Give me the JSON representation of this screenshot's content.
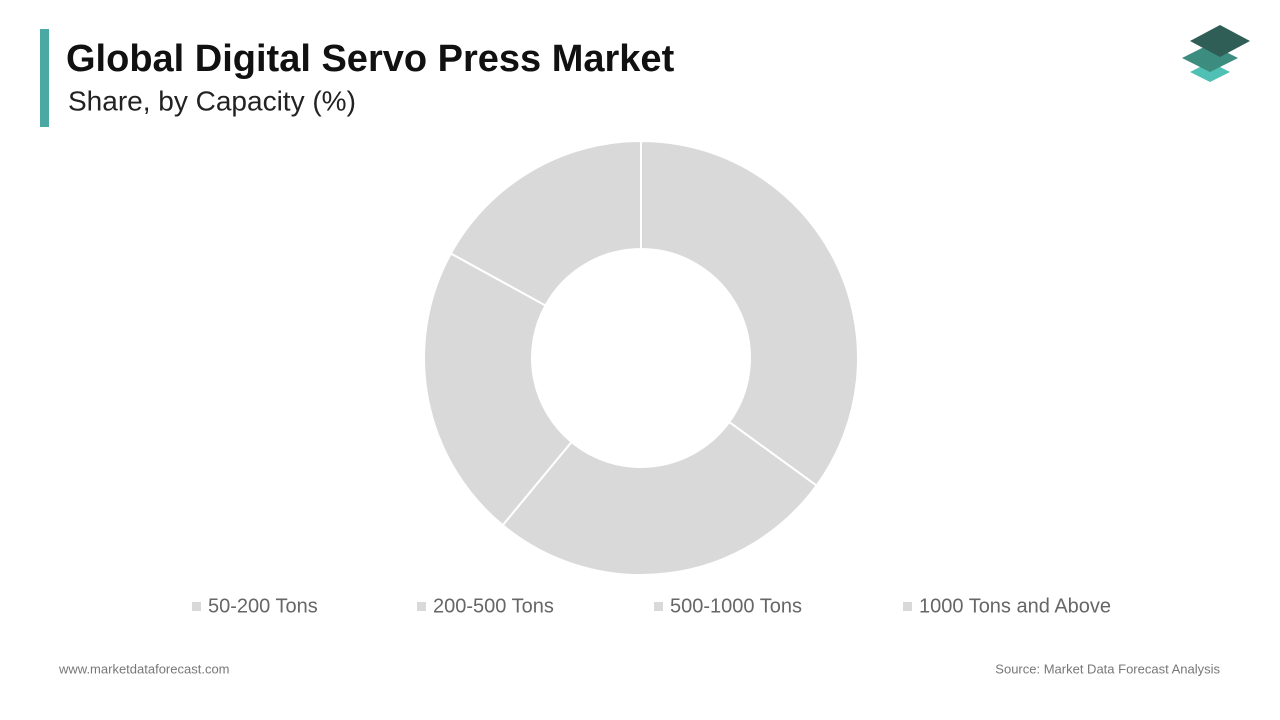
{
  "chart_data": {
    "type": "donut",
    "title": "Global Digital Servo Press Market",
    "subtitle": "Share, by Capacity (%)",
    "categories": [
      "50-200 Tons",
      "200-500 Tons",
      "500-1000 Tons",
      "1000 Tons and Above"
    ],
    "values": [
      35,
      26,
      22,
      17
    ],
    "color": "#d9d9d9"
  },
  "footer": {
    "website": "www.marketdataforecast.com",
    "source": "Source: Market Data Forecast Analysis"
  }
}
